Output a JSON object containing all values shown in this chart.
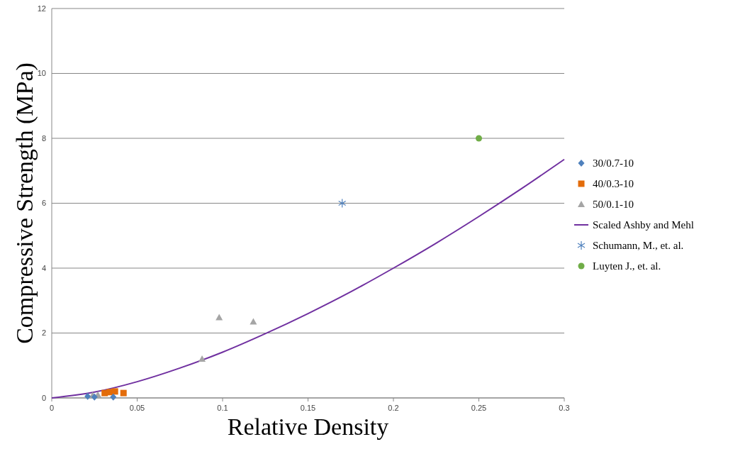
{
  "chart_data": {
    "type": "scatter",
    "xlabel": "Relative Density",
    "ylabel": "Compressive Strength (MPa)",
    "xlim": [
      0,
      0.3
    ],
    "xticks": [
      0,
      0.05,
      0.1,
      0.15,
      0.2,
      0.25,
      0.3
    ],
    "ylim": [
      0,
      12
    ],
    "yticks": [
      0,
      2,
      4,
      6,
      8,
      10,
      12
    ],
    "grid": "y",
    "legend": "right",
    "series": [
      {
        "name": "30/0.7-10",
        "color": "#4f81bd",
        "marker": "diamond",
        "x": [
          0.021,
          0.025,
          0.036
        ],
        "values": [
          0.05,
          0.03,
          0.03
        ]
      },
      {
        "name": "40/0.3-10",
        "color": "#e36c0a",
        "marker": "square",
        "x": [
          0.031,
          0.034,
          0.037,
          0.042
        ],
        "values": [
          0.15,
          0.18,
          0.2,
          0.15
        ]
      },
      {
        "name": "50/0.1-10",
        "color": "#a5a5a5",
        "marker": "triangle",
        "x": [
          0.024,
          0.027,
          0.088,
          0.098,
          0.118
        ],
        "values": [
          0.08,
          0.1,
          1.2,
          2.48,
          2.35
        ]
      },
      {
        "name": "Scaled Ashby and Mehl",
        "type": "line",
        "color": "#7030a0",
        "marker": "none",
        "x": [
          0,
          0.025,
          0.05,
          0.075,
          0.1,
          0.125,
          0.15,
          0.175,
          0.2,
          0.225,
          0.25,
          0.275,
          0.3
        ],
        "values": [
          0,
          0.18,
          0.5,
          0.92,
          1.41,
          1.98,
          2.6,
          3.27,
          4.0,
          4.77,
          5.59,
          6.45,
          7.35
        ]
      },
      {
        "name": "Schumann, M., et. al.",
        "color": "#4f81bd",
        "marker": "cross",
        "x": [
          0.17
        ],
        "values": [
          6
        ]
      },
      {
        "name": "Luyten J., et. al.",
        "color": "#70ad47",
        "marker": "circle",
        "x": [
          0.25
        ],
        "values": [
          8
        ]
      }
    ]
  }
}
